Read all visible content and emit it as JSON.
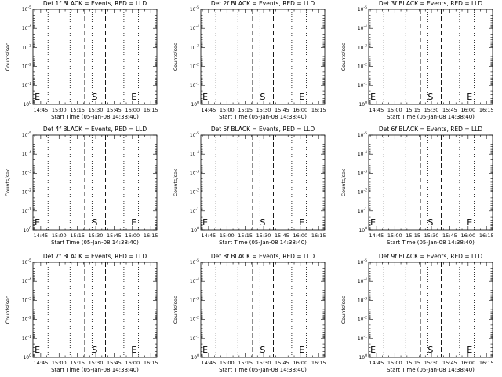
{
  "window": {
    "background": "#ffffff",
    "foreground": "#000000"
  },
  "chart_data": [
    {
      "type": "line",
      "title": "Det 1f BLACK = Events, RED = LLD",
      "xlabel": "Start Time (05-Jan-08 14:38:40)",
      "ylabel": "Counts/sec",
      "xticks": [
        "14:45",
        "15:00",
        "15:15",
        "15:30",
        "15:45",
        "16:00",
        "16:15"
      ],
      "yticks": [
        "10^0",
        "10^-1",
        "10^-2",
        "10^-3",
        "10^-4",
        "10^-5"
      ],
      "xlim": [
        "14:38:40",
        "16:20"
      ],
      "ylim": [
        1,
        1e-05
      ],
      "yscale": "log",
      "series": [],
      "dashed_lines": [
        "15:21",
        "15:38"
      ],
      "dotted_lines": [
        "14:51",
        "15:09",
        "15:27",
        "15:53",
        "16:05"
      ],
      "annotations": [
        {
          "text": "E",
          "x": "14:40"
        },
        {
          "text": "S",
          "x": "15:27"
        },
        {
          "text": "E",
          "x": "15:59"
        }
      ]
    },
    {
      "type": "line",
      "title": "Det 2f BLACK = Events, RED = LLD",
      "xlabel": "Start Time (05-Jan-08 14:38:40)",
      "ylabel": "Counts/sec",
      "xticks": [
        "14:45",
        "15:00",
        "15:15",
        "15:30",
        "15:45",
        "16:00",
        "16:15"
      ],
      "yticks": [
        "10^0",
        "10^-1",
        "10^-2",
        "10^-3",
        "10^-4",
        "10^-5"
      ],
      "xlim": [
        "14:38:40",
        "16:20"
      ],
      "ylim": [
        1,
        1e-05
      ],
      "yscale": "log",
      "series": [],
      "dashed_lines": [
        "15:21",
        "15:38"
      ],
      "dotted_lines": [
        "14:51",
        "15:09",
        "15:27",
        "15:53",
        "16:05"
      ],
      "annotations": [
        {
          "text": "E",
          "x": "14:40"
        },
        {
          "text": "S",
          "x": "15:27"
        },
        {
          "text": "E",
          "x": "15:59"
        }
      ]
    },
    {
      "type": "line",
      "title": "Det 3f BLACK = Events, RED = LLD",
      "xlabel": "Start Time (05-Jan-08 14:38:40)",
      "ylabel": "Counts/sec",
      "xticks": [
        "14:45",
        "15:00",
        "15:15",
        "15:30",
        "15:45",
        "16:00",
        "16:15"
      ],
      "yticks": [
        "10^0",
        "10^-1",
        "10^-2",
        "10^-3",
        "10^-4",
        "10^-5"
      ],
      "xlim": [
        "14:38:40",
        "16:20"
      ],
      "ylim": [
        1,
        1e-05
      ],
      "yscale": "log",
      "series": [],
      "dashed_lines": [
        "15:21",
        "15:38"
      ],
      "dotted_lines": [
        "14:51",
        "15:09",
        "15:27",
        "15:53",
        "16:05"
      ],
      "annotations": [
        {
          "text": "E",
          "x": "14:40"
        },
        {
          "text": "S",
          "x": "15:27"
        },
        {
          "text": "E",
          "x": "15:59"
        }
      ]
    },
    {
      "type": "line",
      "title": "Det 4f BLACK = Events, RED = LLD",
      "xlabel": "Start Time (05-Jan-08 14:38:40)",
      "ylabel": "Counts/sec",
      "xticks": [
        "14:45",
        "15:00",
        "15:15",
        "15:30",
        "15:45",
        "16:00",
        "16:15"
      ],
      "yticks": [
        "10^0",
        "10^-1",
        "10^-2",
        "10^-3",
        "10^-4",
        "10^-5"
      ],
      "xlim": [
        "14:38:40",
        "16:20"
      ],
      "ylim": [
        1,
        1e-05
      ],
      "yscale": "log",
      "series": [],
      "dashed_lines": [
        "15:21",
        "15:38"
      ],
      "dotted_lines": [
        "14:51",
        "15:09",
        "15:27",
        "15:53",
        "16:05"
      ],
      "annotations": [
        {
          "text": "E",
          "x": "14:40"
        },
        {
          "text": "S",
          "x": "15:27"
        },
        {
          "text": "E",
          "x": "15:59"
        }
      ]
    },
    {
      "type": "line",
      "title": "Det 5f BLACK = Events, RED = LLD",
      "xlabel": "Start Time (05-Jan-08 14:38:40)",
      "ylabel": "Counts/sec",
      "xticks": [
        "14:45",
        "15:00",
        "15:15",
        "15:30",
        "15:45",
        "16:00",
        "16:15"
      ],
      "yticks": [
        "10^0",
        "10^-1",
        "10^-2",
        "10^-3",
        "10^-4",
        "10^-5"
      ],
      "xlim": [
        "14:38:40",
        "16:20"
      ],
      "ylim": [
        1,
        1e-05
      ],
      "yscale": "log",
      "series": [],
      "dashed_lines": [
        "15:21",
        "15:38"
      ],
      "dotted_lines": [
        "14:51",
        "15:09",
        "15:27",
        "15:53",
        "16:05"
      ],
      "annotations": [
        {
          "text": "E",
          "x": "14:40"
        },
        {
          "text": "S",
          "x": "15:27"
        },
        {
          "text": "E",
          "x": "15:59"
        }
      ]
    },
    {
      "type": "line",
      "title": "Det 6f BLACK = Events, RED = LLD",
      "xlabel": "Start Time (05-Jan-08 14:38:40)",
      "ylabel": "Counts/sec",
      "xticks": [
        "14:45",
        "15:00",
        "15:15",
        "15:30",
        "15:45",
        "16:00",
        "16:15"
      ],
      "yticks": [
        "10^0",
        "10^-1",
        "10^-2",
        "10^-3",
        "10^-4",
        "10^-5"
      ],
      "xlim": [
        "14:38:40",
        "16:20"
      ],
      "ylim": [
        1,
        1e-05
      ],
      "yscale": "log",
      "series": [],
      "dashed_lines": [
        "15:21",
        "15:38"
      ],
      "dotted_lines": [
        "14:51",
        "15:09",
        "15:27",
        "15:53",
        "16:05"
      ],
      "annotations": [
        {
          "text": "E",
          "x": "14:40"
        },
        {
          "text": "S",
          "x": "15:27"
        },
        {
          "text": "E",
          "x": "15:59"
        }
      ]
    },
    {
      "type": "line",
      "title": "Det 7f BLACK = Events, RED = LLD",
      "xlabel": "Start Time (05-Jan-08 14:38:40)",
      "ylabel": "Counts/sec",
      "xticks": [
        "14:45",
        "15:00",
        "15:15",
        "15:30",
        "15:45",
        "16:00",
        "16:15"
      ],
      "yticks": [
        "10^0",
        "10^-1",
        "10^-2",
        "10^-3",
        "10^-4",
        "10^-5"
      ],
      "xlim": [
        "14:38:40",
        "16:20"
      ],
      "ylim": [
        1,
        1e-05
      ],
      "yscale": "log",
      "series": [],
      "dashed_lines": [
        "15:21",
        "15:38"
      ],
      "dotted_lines": [
        "14:51",
        "15:09",
        "15:27",
        "15:53",
        "16:05"
      ],
      "annotations": [
        {
          "text": "E",
          "x": "14:40"
        },
        {
          "text": "S",
          "x": "15:27"
        },
        {
          "text": "E",
          "x": "15:59"
        }
      ]
    },
    {
      "type": "line",
      "title": "Det 8f BLACK = Events, RED = LLD",
      "xlabel": "Start Time (05-Jan-08 14:38:40)",
      "ylabel": "Counts/sec",
      "xticks": [
        "14:45",
        "15:00",
        "15:15",
        "15:30",
        "15:45",
        "16:00",
        "16:15"
      ],
      "yticks": [
        "10^0",
        "10^-1",
        "10^-2",
        "10^-3",
        "10^-4",
        "10^-5"
      ],
      "xlim": [
        "14:38:40",
        "16:20"
      ],
      "ylim": [
        1,
        1e-05
      ],
      "yscale": "log",
      "series": [],
      "dashed_lines": [
        "15:21",
        "15:38"
      ],
      "dotted_lines": [
        "14:51",
        "15:09",
        "15:27",
        "15:53",
        "16:05"
      ],
      "annotations": [
        {
          "text": "E",
          "x": "14:40"
        },
        {
          "text": "S",
          "x": "15:27"
        },
        {
          "text": "E",
          "x": "15:59"
        }
      ]
    },
    {
      "type": "line",
      "title": "Det 9f BLACK = Events, RED = LLD",
      "xlabel": "Start Time (05-Jan-08 14:38:40)",
      "ylabel": "Counts/sec",
      "xticks": [
        "14:45",
        "15:00",
        "15:15",
        "15:30",
        "15:45",
        "16:00",
        "16:15"
      ],
      "yticks": [
        "10^0",
        "10^-1",
        "10^-2",
        "10^-3",
        "10^-4",
        "10^-5"
      ],
      "xlim": [
        "14:38:40",
        "16:20"
      ],
      "ylim": [
        1,
        1e-05
      ],
      "yscale": "log",
      "series": [],
      "dashed_lines": [
        "15:21",
        "15:38"
      ],
      "dotted_lines": [
        "14:51",
        "15:09",
        "15:27",
        "15:53",
        "16:05"
      ],
      "annotations": [
        {
          "text": "E",
          "x": "14:40"
        },
        {
          "text": "S",
          "x": "15:27"
        },
        {
          "text": "E",
          "x": "15:59"
        }
      ]
    }
  ]
}
